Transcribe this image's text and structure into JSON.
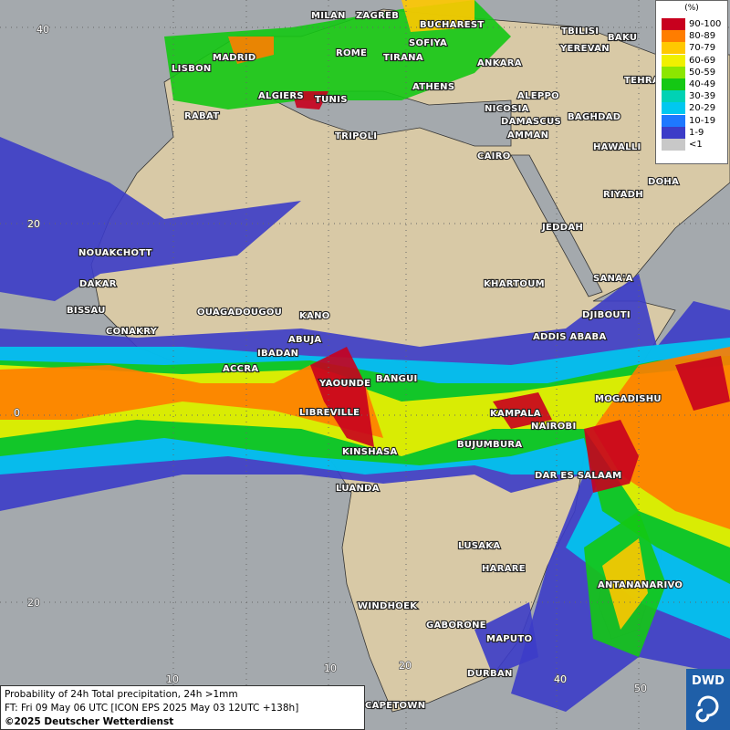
{
  "legend": {
    "unit": "(%)",
    "entries": [
      {
        "label": "90-100",
        "color": "#c8001e"
      },
      {
        "label": "80-89",
        "color": "#ff7d00"
      },
      {
        "label": "70-79",
        "color": "#ffc800"
      },
      {
        "label": "60-69",
        "color": "#f0f000"
      },
      {
        "label": "50-59",
        "color": "#8ce600"
      },
      {
        "label": "40-49",
        "color": "#14c814"
      },
      {
        "label": "30-39",
        "color": "#00d2b4"
      },
      {
        "label": "20-29",
        "color": "#00c8f0"
      },
      {
        "label": "10-19",
        "color": "#1e78ff"
      },
      {
        "label": "1-9",
        "color": "#3c3cc8"
      },
      {
        "label": "<1",
        "color": "#c8c8c8"
      }
    ]
  },
  "grid_labels": [
    "40",
    "20",
    "0",
    "20",
    "10",
    "10",
    "20",
    "40",
    "50"
  ],
  "cities": [
    "MILAN",
    "ZAGREB",
    "BUCHAREST",
    "TBILISI",
    "BAKU",
    "MADRID",
    "ROME",
    "SOFIYA",
    "YEREVAN",
    "LISBON",
    "TIRANA",
    "ANKARA",
    "TEHRAN",
    "ALGIERS",
    "TUNIS",
    "ATHENS",
    "ALEPPO",
    "RABAT",
    "NICOSIA",
    "BAGHDAD",
    "TRIPOLI",
    "DAMASCUS",
    "AMMAN",
    "CAIRO",
    "HAWALLI",
    "DOHA",
    "RIYADH",
    "JEDDAH",
    "NOUAKCHOTT",
    "SANA'A",
    "DAKAR",
    "KHARTOUM",
    "BISSAU",
    "OUAGADOUGOU",
    "KANO",
    "DJIBOUTI",
    "CONAKRY",
    "ABUJA",
    "ADDIS ABABA",
    "IBADAN",
    "ACCRA",
    "BANGUI",
    "YAOUNDE",
    "MOGADISHU",
    "LIBREVILLE",
    "KAMPALA",
    "NAIROBI",
    "BUJUMBURA",
    "KINSHASA",
    "DAR ES SALAAM",
    "LUANDA",
    "LUSAKA",
    "HARARE",
    "ANTANANARIVO",
    "WINDHOEK",
    "GABORONE",
    "MAPUTO",
    "DURBAN",
    "CAPETOWN"
  ],
  "footer": {
    "line1": "Probability of 24h Total precipitation, 24h >1mm",
    "line2": "FT: Fri 09 May 06 UTC [ICON EPS 2025 May 03 12UTC +138h]",
    "copyright": "©2025 Deutscher Wetterdienst"
  },
  "logo": "DWD"
}
